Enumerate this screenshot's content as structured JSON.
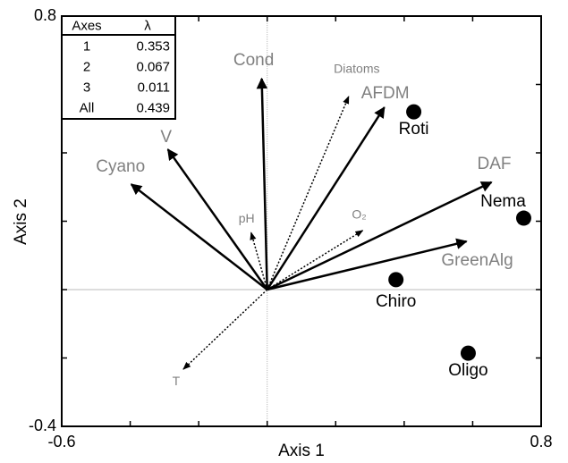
{
  "chart_data": {
    "type": "biplot",
    "xlabel": "Axis 1",
    "ylabel": "Axis 2",
    "xlim": [
      -0.6,
      0.8
    ],
    "ylim": [
      -0.4,
      0.8
    ],
    "xticks": [
      -0.6,
      0.8
    ],
    "yticks": [
      -0.4,
      0.8
    ],
    "xminorticks": [
      -0.4,
      -0.2,
      0,
      0.2,
      0.4,
      0.6
    ],
    "yminorticks": [
      -0.2,
      0,
      0.2,
      0.4,
      0.6
    ],
    "vector_label_color": "#808080",
    "point_color": "#000000",
    "vectors": [
      {
        "name": "Cond",
        "x": -0.016,
        "y": 0.617,
        "style": "solid"
      },
      {
        "name": "Diatoms",
        "x": 0.238,
        "y": 0.565,
        "style": "dotted"
      },
      {
        "name": "AFDM",
        "x": 0.342,
        "y": 0.533,
        "style": "solid"
      },
      {
        "name": "V",
        "x": -0.29,
        "y": 0.41,
        "style": "solid"
      },
      {
        "name": "Cyano",
        "x": -0.397,
        "y": 0.308,
        "style": "solid"
      },
      {
        "name": "DAF",
        "x": 0.655,
        "y": 0.314,
        "style": "solid"
      },
      {
        "name": "pH",
        "x": -0.047,
        "y": 0.167,
        "style": "dotted"
      },
      {
        "name": "O₂",
        "x": 0.279,
        "y": 0.173,
        "style": "dotted"
      },
      {
        "name": "GreenAlg",
        "x": 0.582,
        "y": 0.141,
        "style": "solid"
      },
      {
        "name": "T",
        "x": -0.245,
        "y": -0.233,
        "style": "dotted"
      }
    ],
    "points": [
      {
        "name": "Roti",
        "x": 0.428,
        "y": 0.52
      },
      {
        "name": "Nema",
        "x": 0.749,
        "y": 0.209
      },
      {
        "name": "Chiro",
        "x": 0.376,
        "y": 0.029
      },
      {
        "name": "Oligo",
        "x": 0.587,
        "y": -0.186
      }
    ],
    "eigen_table": {
      "header": [
        "Axes",
        "λ"
      ],
      "rows": [
        [
          "1",
          0.353
        ],
        [
          "2",
          0.067
        ],
        [
          "3",
          0.011
        ],
        [
          "All",
          0.439
        ]
      ]
    }
  }
}
